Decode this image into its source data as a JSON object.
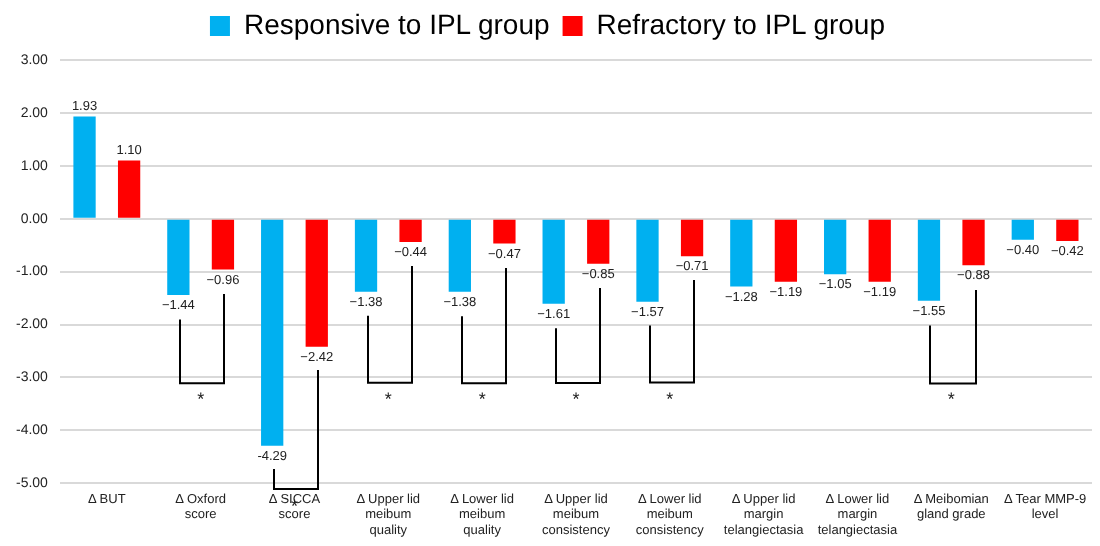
{
  "chart_data": {
    "type": "bar",
    "categories": [
      "Δ BUT",
      "Δ Oxford score",
      "Δ SICCA score",
      "Δ Upper lid meibum quality",
      "Δ Lower lid meibum quality",
      "Δ Upper lid meibum consistency",
      "Δ Lower lid meibum consistency",
      "Δ Upper lid margin telangiectasia",
      "Δ Lower lid margin telangiectasia",
      "Δ Meibomian gland grade",
      "Δ Tear MMP-9 level"
    ],
    "series": [
      {
        "name": "Responsive to IPL group",
        "color": "#00b0f0",
        "values": [
          1.93,
          -1.44,
          -4.29,
          -1.38,
          -1.38,
          -1.61,
          -1.57,
          -1.28,
          -1.05,
          -1.55,
          -0.4
        ],
        "value_labels": [
          "1.93",
          "−1.44",
          "-4.29",
          "−1.38",
          "−1.38",
          "−1.61",
          "−1.57",
          "−1.28",
          "−1.05",
          "−1.55",
          "−0.40"
        ]
      },
      {
        "name": "Refractory to IPL group",
        "color": "#ff0000",
        "values": [
          1.1,
          -0.96,
          -2.42,
          -0.44,
          -0.47,
          -0.85,
          -0.71,
          -1.19,
          -1.19,
          -0.88,
          -0.42
        ],
        "value_labels": [
          "1.10",
          "−0.96",
          "−2.42",
          "−0.44",
          "−0.47",
          "−0.85",
          "−0.71",
          "−1.19",
          "−1.19",
          "−0.88",
          "−0.42"
        ]
      }
    ],
    "ylim": [
      -5,
      3
    ],
    "yticks": [
      {
        "value": 3,
        "label": "3.00"
      },
      {
        "value": 2,
        "label": "2.00"
      },
      {
        "value": 1,
        "label": "1.00"
      },
      {
        "value": 0,
        "label": "0.00"
      },
      {
        "value": -1,
        "label": "-1.00"
      },
      {
        "value": -2,
        "label": "-2.00"
      },
      {
        "value": -3,
        "label": "-3.00"
      },
      {
        "value": -4,
        "label": "-4.00"
      },
      {
        "value": -5,
        "label": "-5.00"
      }
    ],
    "grid": "y",
    "legend": "top",
    "annotations": [
      "*",
      "*",
      "*",
      "*",
      "*",
      "*",
      "*"
    ]
  }
}
